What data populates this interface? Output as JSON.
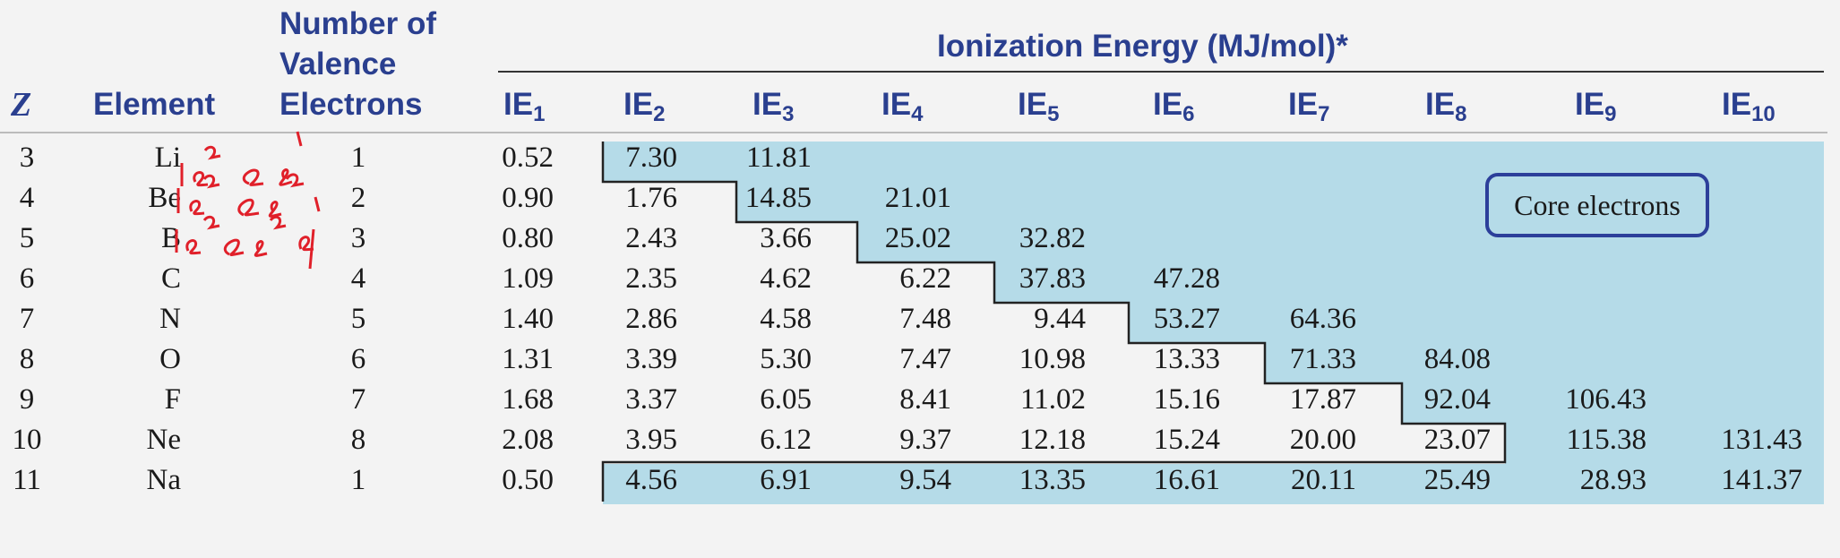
{
  "headers": {
    "z": "Z",
    "element": "Element",
    "valence": [
      "Number of",
      "Valence",
      "Electrons"
    ],
    "ionization_title": "Ionization Energy (MJ/mol)*",
    "ie_base": "IE",
    "ie_subscripts": [
      "1",
      "2",
      "3",
      "4",
      "5",
      "6",
      "7",
      "8",
      "9",
      "10"
    ]
  },
  "legend": "Core electrons",
  "rows": [
    {
      "z": "3",
      "element": "Li",
      "valence": "1",
      "ie": [
        "0.52",
        "7.30",
        "11.81",
        "",
        "",
        "",
        "",
        "",
        "",
        ""
      ]
    },
    {
      "z": "4",
      "element": "Be",
      "valence": "2",
      "ie": [
        "0.90",
        "1.76",
        "14.85",
        "21.01",
        "",
        "",
        "",
        "",
        "",
        ""
      ]
    },
    {
      "z": "5",
      "element": "B",
      "valence": "3",
      "ie": [
        "0.80",
        "2.43",
        "3.66",
        "25.02",
        "32.82",
        "",
        "",
        "",
        "",
        ""
      ]
    },
    {
      "z": "6",
      "element": "C",
      "valence": "4",
      "ie": [
        "1.09",
        "2.35",
        "4.62",
        "6.22",
        "37.83",
        "47.28",
        "",
        "",
        "",
        ""
      ]
    },
    {
      "z": "7",
      "element": "N",
      "valence": "5",
      "ie": [
        "1.40",
        "2.86",
        "4.58",
        "7.48",
        "9.44",
        "53.27",
        "64.36",
        "",
        "",
        ""
      ]
    },
    {
      "z": "8",
      "element": "O",
      "valence": "6",
      "ie": [
        "1.31",
        "3.39",
        "5.30",
        "7.47",
        "10.98",
        "13.33",
        "71.33",
        "84.08",
        "",
        ""
      ]
    },
    {
      "z": "9",
      "element": "F",
      "valence": "7",
      "ie": [
        "1.68",
        "3.37",
        "6.05",
        "8.41",
        "11.02",
        "15.16",
        "17.87",
        "92.04",
        "106.43",
        ""
      ]
    },
    {
      "z": "10",
      "element": "Ne",
      "valence": "8",
      "ie": [
        "2.08",
        "3.95",
        "6.12",
        "9.37",
        "12.18",
        "15.24",
        "20.00",
        "23.07",
        "115.38",
        "131.43"
      ]
    },
    {
      "z": "11",
      "element": "Na",
      "valence": "1",
      "ie": [
        "0.50",
        "4.56",
        "6.91",
        "9.54",
        "13.35",
        "16.61",
        "20.11",
        "25.49",
        "28.93",
        "141.37"
      ]
    }
  ],
  "annotations": [
    "1s²2s¹",
    "1s²2s²",
    "1s²2s²2p¹"
  ],
  "colors": {
    "header_blue": "#2a3f8f",
    "core_fill": "#b5dbe8",
    "annotation_red": "#e0202a"
  }
}
